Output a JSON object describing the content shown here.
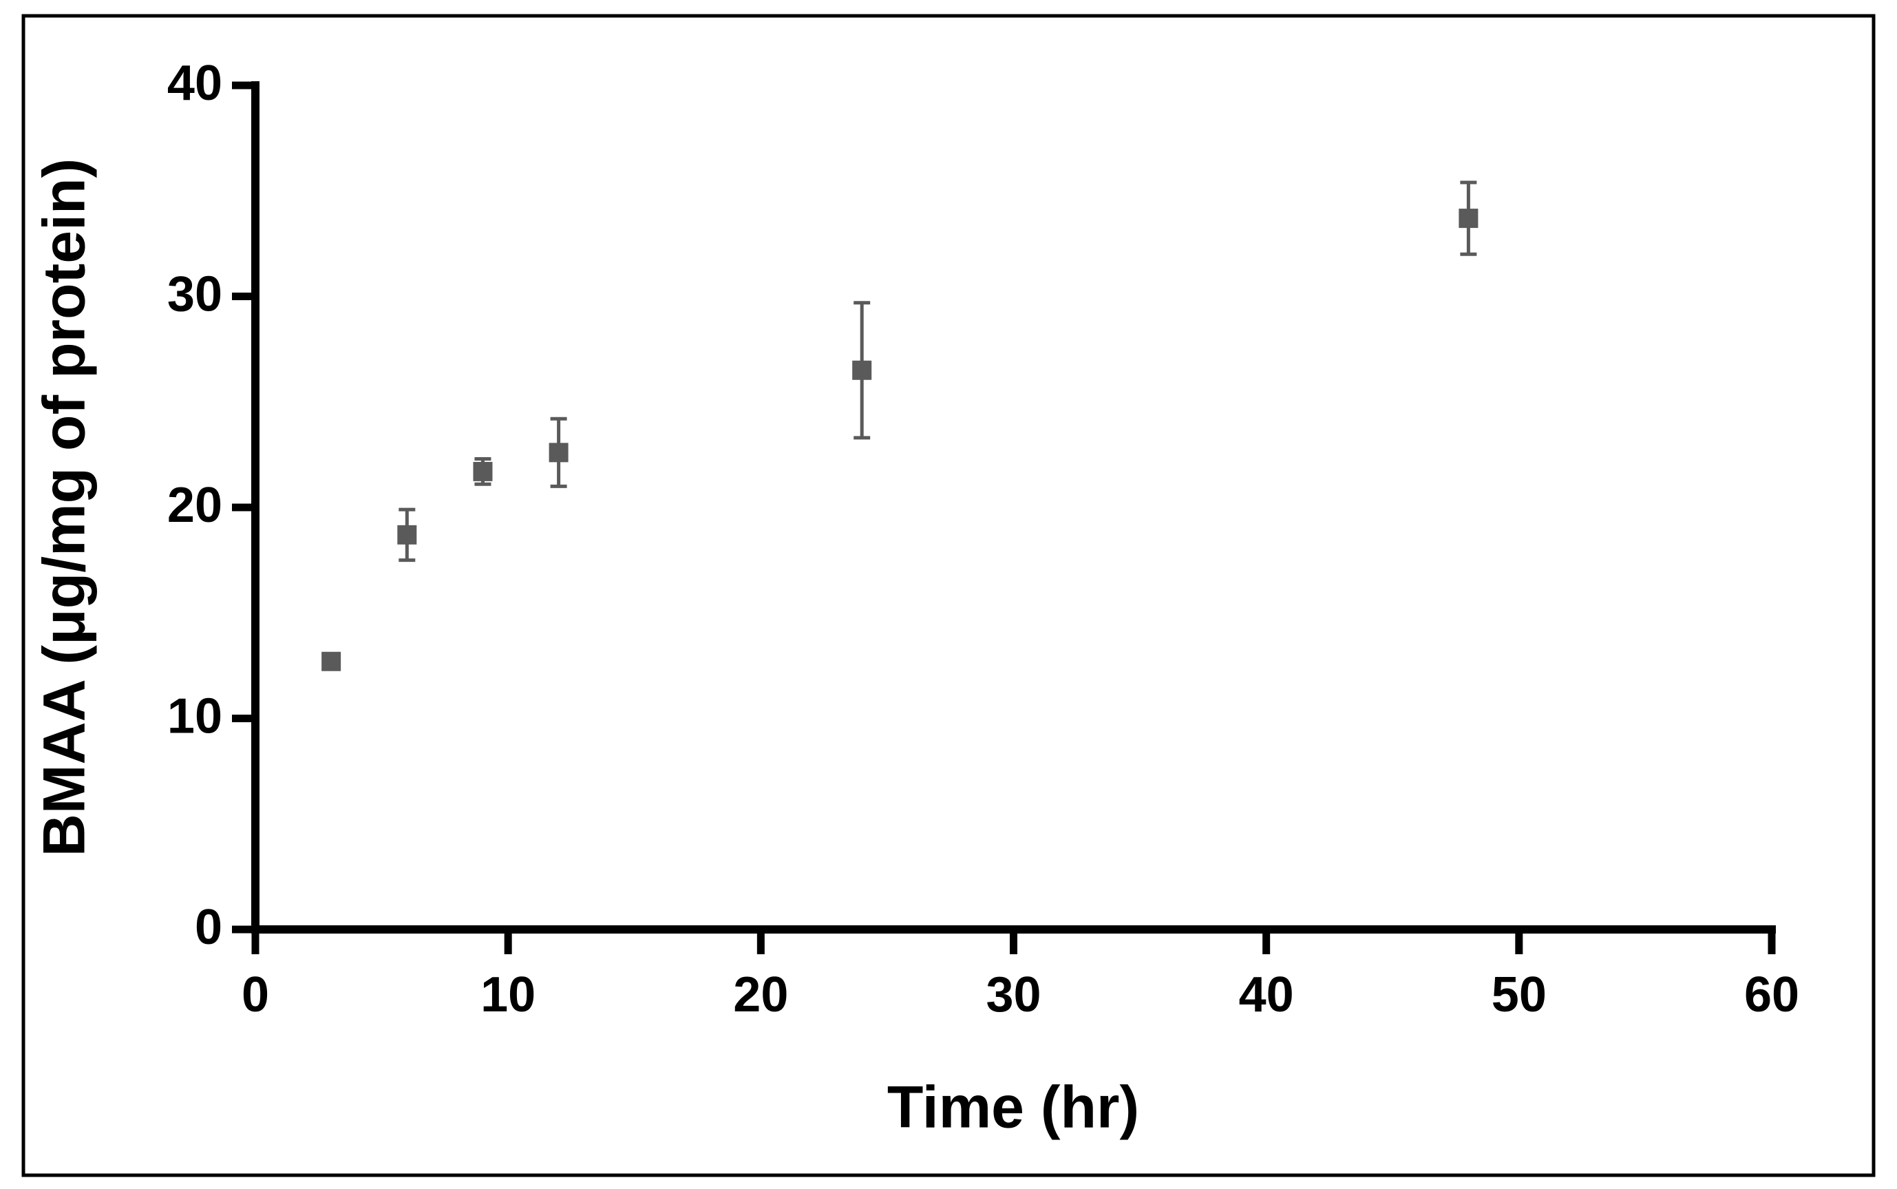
{
  "chart_data": {
    "type": "scatter",
    "x_label": "Time (hr)",
    "y_label": "BMAA (μg/mg of protein)",
    "x": [
      3,
      6,
      9,
      12,
      24,
      48
    ],
    "series": [
      {
        "color": "#5a5a5a",
        "values": [
          12.7,
          18.7,
          21.7,
          22.6,
          26.5,
          33.7
        ],
        "errors": [
          0.2,
          1.2,
          0.6,
          1.6,
          3.2,
          1.7
        ]
      }
    ],
    "xlim": [
      0,
      60
    ],
    "xticks": [
      0,
      10,
      20,
      30,
      40,
      50,
      60
    ],
    "ylim": [
      0,
      40
    ],
    "yticks": [
      0,
      10,
      20,
      30,
      40
    ],
    "grid": false
  }
}
